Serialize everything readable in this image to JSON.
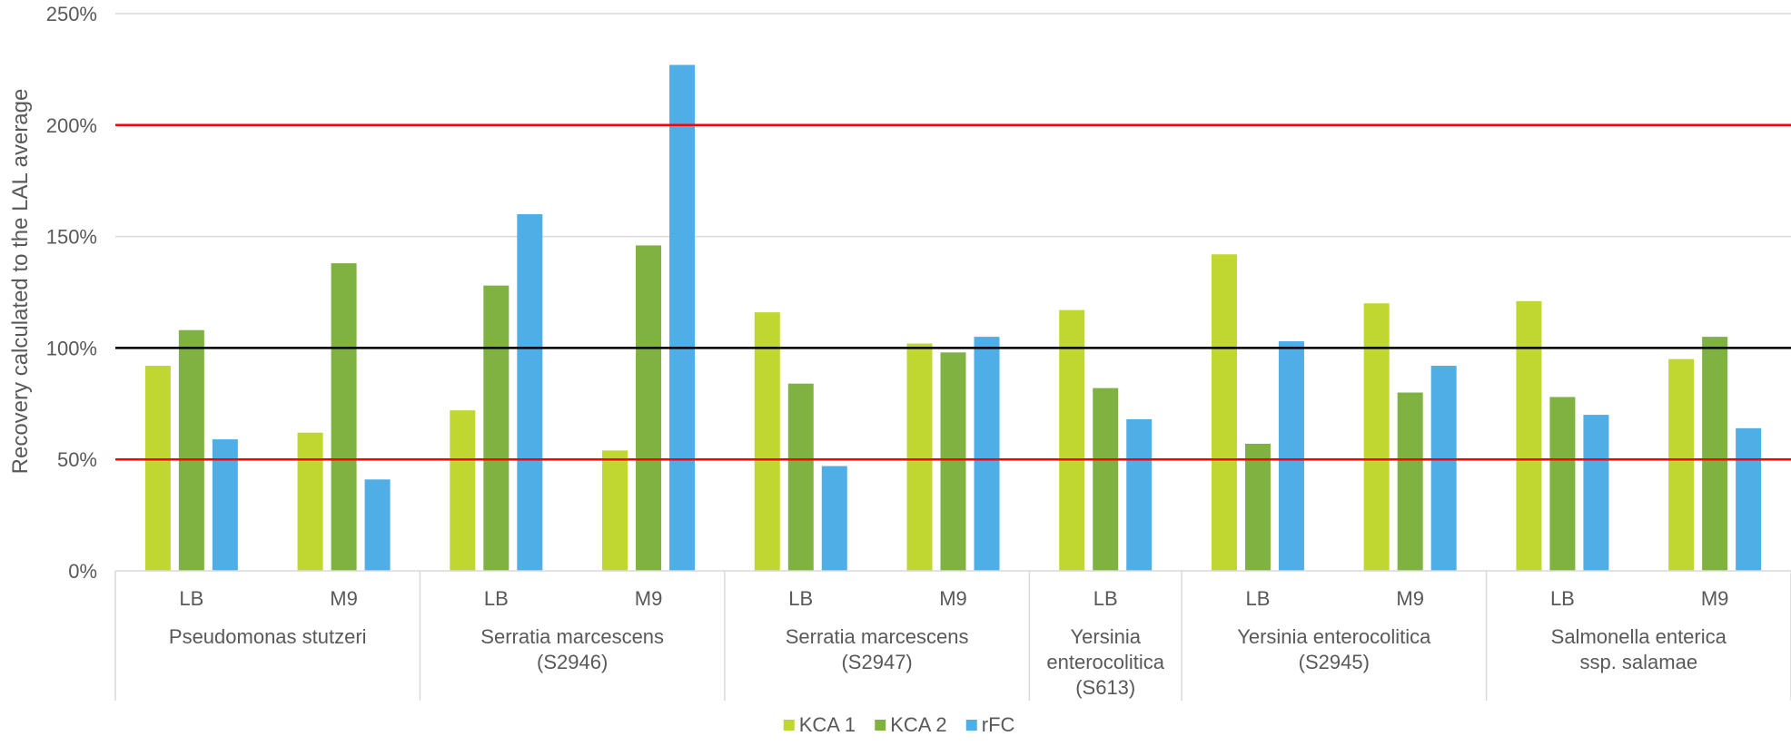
{
  "chart_data": {
    "type": "bar",
    "title": "",
    "ylabel": "Recovery calculated to the LAL average",
    "ylim": [
      0,
      250
    ],
    "y_tick_format": "percent",
    "y_ticks": [
      "0%",
      "50%",
      "100%",
      "150%",
      "200%",
      "250%"
    ],
    "y_tick_values": [
      0,
      50,
      100,
      150,
      200,
      250
    ],
    "grid": true,
    "legend_position": "bottom",
    "groups": [
      {
        "label_lines": [
          "Pseudomonas stutzeri"
        ],
        "categories": [
          "LB",
          "M9"
        ]
      },
      {
        "label_lines": [
          "Serratia marcescens",
          "(S2946)"
        ],
        "categories": [
          "LB",
          "M9"
        ]
      },
      {
        "label_lines": [
          "Serratia marcescens",
          "(S2947)"
        ],
        "categories": [
          "LB",
          "M9"
        ]
      },
      {
        "label_lines": [
          "Yersinia",
          "enterocolitica",
          "(S613)"
        ],
        "categories": [
          "LB"
        ]
      },
      {
        "label_lines": [
          "Yersinia enterocolitica",
          "(S2945)"
        ],
        "categories": [
          "LB",
          "M9"
        ]
      },
      {
        "label_lines": [
          "Salmonella enterica",
          "ssp. salamae"
        ],
        "categories": [
          "LB",
          "M9"
        ]
      }
    ],
    "series": [
      {
        "name": "KCA 1",
        "color": "#BFD730",
        "values": [
          92,
          62,
          72,
          54,
          116,
          102,
          117,
          142,
          120,
          121,
          95
        ]
      },
      {
        "name": "KCA 2",
        "color": "#7FB241",
        "values": [
          108,
          138,
          128,
          146,
          84,
          98,
          82,
          57,
          80,
          78,
          105
        ]
      },
      {
        "name": "rFC",
        "color": "#4FAEE6",
        "values": [
          59,
          41,
          160,
          227,
          47,
          105,
          68,
          103,
          92,
          70,
          64
        ]
      }
    ],
    "reference_lines": [
      {
        "value": 200,
        "color": "#FF0000"
      },
      {
        "value": 100,
        "color": "#000000"
      },
      {
        "value": 50,
        "color": "#FF0000"
      }
    ]
  }
}
